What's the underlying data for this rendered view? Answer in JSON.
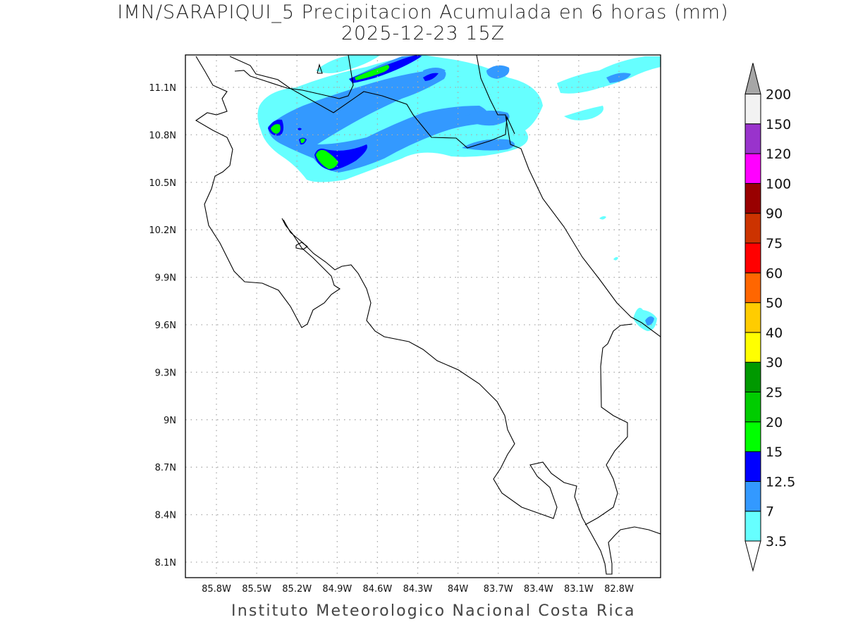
{
  "title": {
    "line1": "IMN/SARAPIQUI_5 Precipitacion Acumulada en 6 horas (mm)",
    "line2": "2025-12-23 15Z"
  },
  "footer": "Instituto Meteorologico Nacional Costa Rica",
  "map": {
    "lon_ticks": [
      "85.8W",
      "85.5W",
      "85.2W",
      "84.9W",
      "84.6W",
      "84.3W",
      "84W",
      "83.7W",
      "83.4W",
      "83.1W",
      "82.8W"
    ],
    "lat_ticks": [
      "11.1N",
      "10.8N",
      "10.5N",
      "10.2N",
      "9.9N",
      "9.6N",
      "9.3N",
      "9N",
      "8.7N",
      "8.4N",
      "8.1N"
    ],
    "grid": "dotted"
  },
  "colorbar": {
    "labels": [
      "3.5",
      "7",
      "12.5",
      "15",
      "20",
      "25",
      "30",
      "40",
      "50",
      "60",
      "75",
      "90",
      "100",
      "120",
      "150",
      "200"
    ],
    "colors": [
      "#66ffff",
      "#3399ff",
      "#0000ff",
      "#00ff00",
      "#00cc00",
      "#009900",
      "#ffff00",
      "#ffcc00",
      "#ff6600",
      "#ff0000",
      "#cc3300",
      "#990000",
      "#ff00ff",
      "#9933cc",
      "#f2f2f2"
    ],
    "below_color": "#ffffff",
    "above_color": "#a6a6a6"
  }
}
